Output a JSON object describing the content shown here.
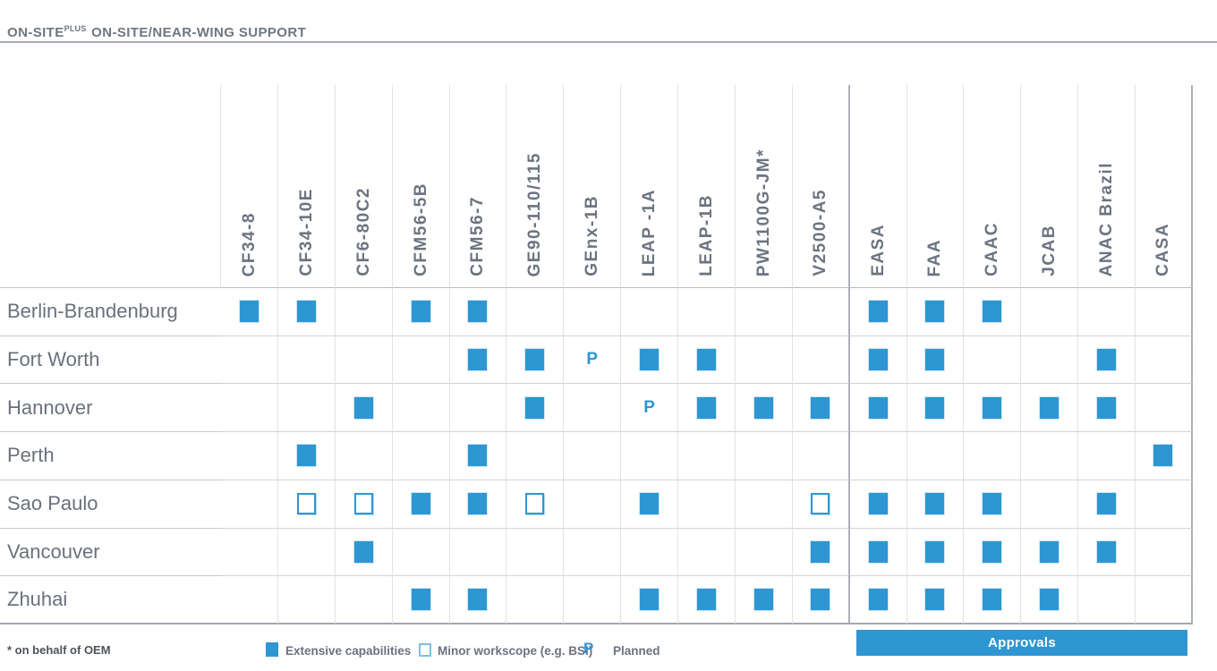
{
  "title": {
    "main": "ON-SITE",
    "sup": "PLUS",
    "rest": "ON-SITE/NEAR-WING SUPPORT"
  },
  "approvals_banner": "Approvals",
  "legend": {
    "oem_note": "* on behalf of OEM",
    "extensive_label": "Extensive capabilities",
    "minor_label": "Minor workscope (e.g. BSI)",
    "planned_symbol": "P",
    "planned_label": "Planned"
  },
  "colors": {
    "accent_blue": "#2E96D2",
    "text_gray": "#6B7280",
    "banner_text": "#FFFFFF"
  },
  "chart_data": {
    "type": "table",
    "title": "ON-SITEPLUS ON-SITE/NEAR-WING SUPPORT",
    "cell_codes": {
      "E": "Extensive capabilities",
      "M": "Minor workscope (e.g. BSI)",
      "P": "Planned",
      "": "none"
    },
    "column_groups": [
      {
        "name": "engine-types",
        "span": 11
      },
      {
        "name": "approvals",
        "span": 6
      }
    ],
    "columns": [
      "CF34-8",
      "CF34-10E",
      "CF6-80C2",
      "CFM56-5B",
      "CFM56-7",
      "GE90-110/115",
      "GEnx-1B",
      "LEAP -1A",
      "LEAP-1B",
      "PW1100G-JM*",
      "V2500-A5",
      "EASA",
      "FAA",
      "CAAC",
      "JCAB",
      "ANAC Brazil",
      "CASA"
    ],
    "rows": [
      {
        "label": "Berlin-Brandenburg",
        "cells": [
          "E",
          "E",
          "",
          "E",
          "E",
          "",
          "",
          "",
          "",
          "",
          "",
          "E",
          "E",
          "E",
          "",
          "",
          ""
        ]
      },
      {
        "label": "Fort Worth",
        "cells": [
          "",
          "",
          "",
          "",
          "E",
          "E",
          "P",
          "E",
          "E",
          "",
          "",
          "E",
          "E",
          "",
          "",
          "E",
          ""
        ]
      },
      {
        "label": "Hannover",
        "cells": [
          "",
          "",
          "E",
          "",
          "",
          "E",
          "",
          "P",
          "E",
          "E",
          "E",
          "E",
          "E",
          "E",
          "E",
          "E",
          ""
        ]
      },
      {
        "label": "Perth",
        "cells": [
          "",
          "E",
          "",
          "",
          "E",
          "",
          "",
          "",
          "",
          "",
          "",
          "",
          "",
          "",
          "",
          "",
          "E"
        ]
      },
      {
        "label": "Sao Paulo",
        "cells": [
          "",
          "M",
          "M",
          "E",
          "E",
          "M",
          "",
          "E",
          "",
          "",
          "M",
          "E",
          "E",
          "E",
          "",
          "E",
          ""
        ]
      },
      {
        "label": "Vancouver",
        "cells": [
          "",
          "",
          "E",
          "",
          "",
          "",
          "",
          "",
          "",
          "",
          "E",
          "E",
          "E",
          "E",
          "E",
          "E",
          ""
        ]
      },
      {
        "label": "Zhuhai",
        "cells": [
          "",
          "",
          "",
          "E",
          "E",
          "",
          "",
          "E",
          "E",
          "E",
          "E",
          "E",
          "E",
          "E",
          "E",
          "",
          ""
        ]
      }
    ]
  }
}
